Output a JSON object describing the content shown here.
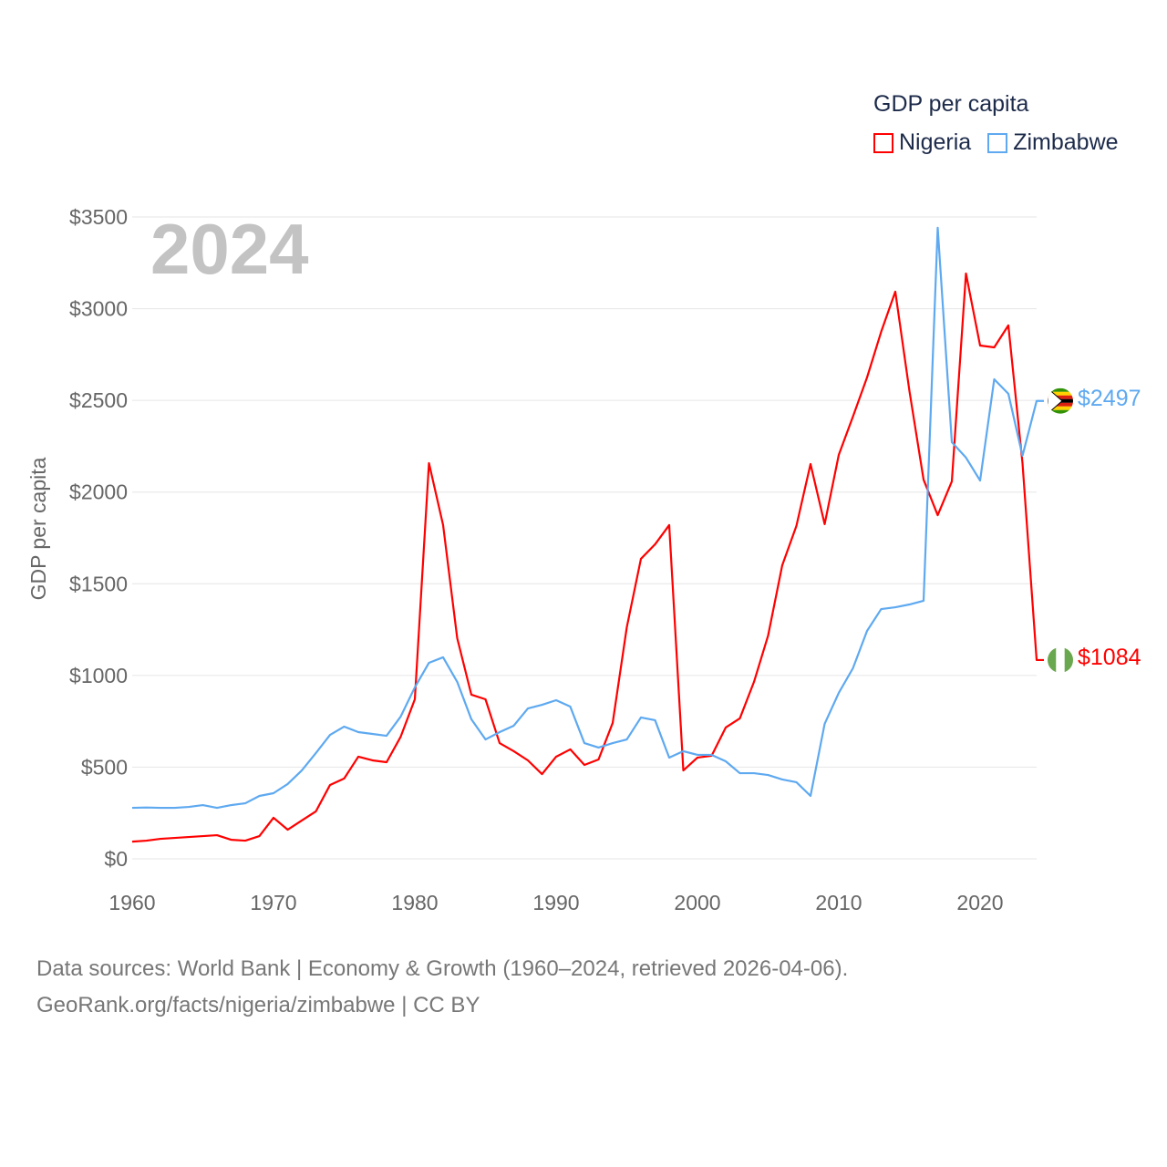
{
  "chart_data": {
    "type": "line",
    "title": "GDP per capita",
    "year_label": "2024",
    "xlabel": "",
    "ylabel": "GDP per capita",
    "xlim": [
      1960,
      2024
    ],
    "ylim": [
      0,
      3500
    ],
    "x_ticks": [
      "1960",
      "1970",
      "1980",
      "1990",
      "2000",
      "2010",
      "2020"
    ],
    "y_ticks": [
      "$0",
      "$500",
      "$1000",
      "$1500",
      "$2000",
      "$2500",
      "$3000",
      "$3500"
    ],
    "grid": true,
    "legend_position": "top-right",
    "x": [
      1960,
      1961,
      1962,
      1963,
      1964,
      1965,
      1966,
      1967,
      1968,
      1969,
      1970,
      1971,
      1972,
      1973,
      1974,
      1975,
      1976,
      1977,
      1978,
      1979,
      1980,
      1981,
      1982,
      1983,
      1984,
      1985,
      1986,
      1987,
      1988,
      1989,
      1990,
      1991,
      1992,
      1993,
      1994,
      1995,
      1996,
      1997,
      1998,
      1999,
      2000,
      2001,
      2002,
      2003,
      2004,
      2005,
      2006,
      2007,
      2008,
      2009,
      2010,
      2011,
      2012,
      2013,
      2014,
      2015,
      2016,
      2017,
      2018,
      2019,
      2020,
      2021,
      2022,
      2023,
      2024
    ],
    "series": [
      {
        "name": "Nigeria",
        "color": "#ff0000",
        "end_label": "$1084",
        "values": [
          94,
          99,
          109,
          114,
          119,
          124,
          129,
          104,
          99,
          124,
          224,
          159,
          209,
          259,
          403,
          438,
          557,
          537,
          527,
          666,
          870,
          2158,
          1820,
          1203,
          895,
          870,
          631,
          587,
          537,
          462,
          557,
          597,
          512,
          542,
          741,
          1263,
          1636,
          1715,
          1820,
          482,
          552,
          562,
          716,
          766,
          965,
          1218,
          1601,
          1815,
          2153,
          1825,
          2203,
          2411,
          2625,
          2874,
          3093,
          2551,
          2068,
          1874,
          2058,
          3192,
          2799,
          2789,
          2909,
          2158,
          1084
        ]
      },
      {
        "name": "Zimbabwe",
        "color": "#5ea9f0",
        "end_label": "$2497",
        "values": [
          278,
          280,
          278,
          278,
          283,
          293,
          278,
          293,
          303,
          343,
          358,
          408,
          482,
          577,
          676,
          721,
          691,
          681,
          671,
          776,
          935,
          1069,
          1099,
          965,
          761,
          651,
          691,
          726,
          820,
          840,
          865,
          830,
          631,
          607,
          631,
          651,
          771,
          756,
          552,
          587,
          567,
          567,
          532,
          467,
          467,
          457,
          433,
          418,
          343,
          736,
          905,
          1039,
          1243,
          1362,
          1372,
          1387,
          1407,
          3441,
          2272,
          2188,
          2063,
          2615,
          2536,
          2198,
          2497
        ]
      }
    ]
  },
  "footer": {
    "line1": "Data sources: World Bank | Economy & Growth (1960–2024, retrieved 2026-04-06).",
    "line2": "GeoRank.org/facts/nigeria/zimbabwe | CC BY"
  }
}
